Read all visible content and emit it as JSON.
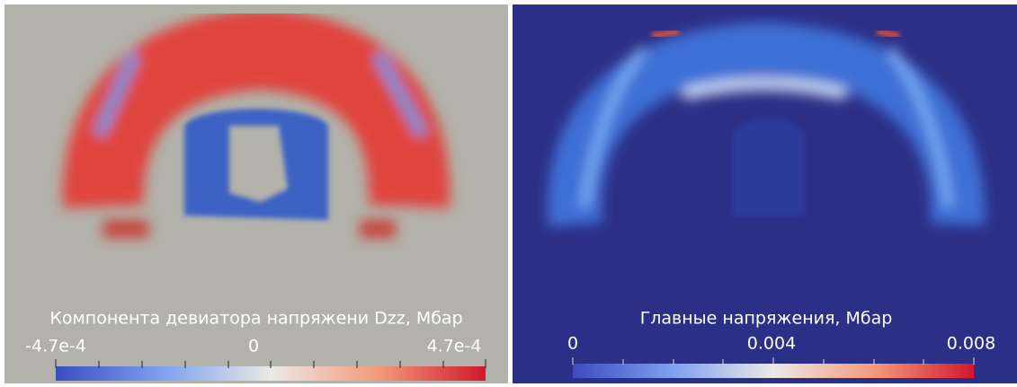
{
  "panels": [
    {
      "title": "Компонента девиатора напряжени Dzz, Мбар",
      "ticks": [
        "-4.7e-4",
        "0",
        "4.7e-4"
      ]
    },
    {
      "title": "Главные напряжения, Мбар",
      "ticks": [
        "0",
        "0.004",
        "0.008"
      ]
    }
  ]
}
